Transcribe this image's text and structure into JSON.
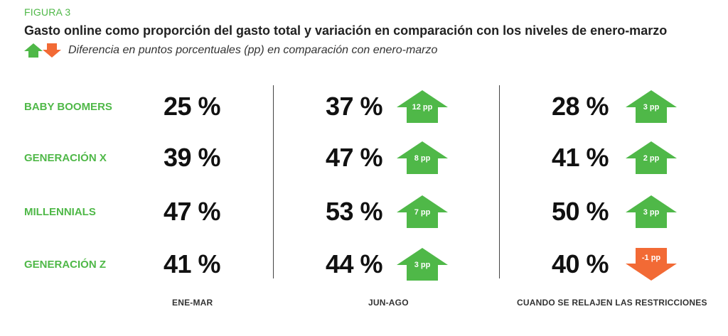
{
  "figure_label": "FIGURA 3",
  "title": "Gasto online como proporción del gasto total y variación en comparación con los niveles de enero-marzo",
  "legend_text": "Diferencia en puntos porcentuales (pp) en comparación con enero-marzo",
  "colors": {
    "up": "#4fb848",
    "down": "#f26a35",
    "label": "#4fb848"
  },
  "chart_data": {
    "type": "table",
    "title": "Gasto online como proporción del gasto total y variación en comparación con los niveles de enero-marzo",
    "subtitle": "Diferencia en puntos porcentuales (pp) en comparación con enero-marzo",
    "unit": "%",
    "columns": [
      "ENE-MAR",
      "JUN-AGO",
      "CUANDO SE RELAJEN LAS RESTRICCIONES"
    ],
    "rows": [
      {
        "label": "BABY BOOMERS",
        "values": [
          "25 %",
          "37 %",
          "28 %"
        ],
        "changes": [
          null,
          "12 pp",
          "3 pp"
        ],
        "direction": [
          null,
          "up",
          "up"
        ]
      },
      {
        "label": "GENERACIÓN X",
        "values": [
          "39 %",
          "47 %",
          "41 %"
        ],
        "changes": [
          null,
          "8 pp",
          "2 pp"
        ],
        "direction": [
          null,
          "up",
          "up"
        ]
      },
      {
        "label": "MILLENNIALS",
        "values": [
          "47 %",
          "53 %",
          "50 %"
        ],
        "changes": [
          null,
          "7 pp",
          "3 pp"
        ],
        "direction": [
          null,
          "up",
          "up"
        ]
      },
      {
        "label": "GENERACIÓN Z",
        "values": [
          "41 %",
          "44 %",
          "40 %"
        ],
        "changes": [
          null,
          "3 pp",
          "-1 pp"
        ],
        "direction": [
          null,
          "up",
          "down"
        ]
      }
    ]
  }
}
